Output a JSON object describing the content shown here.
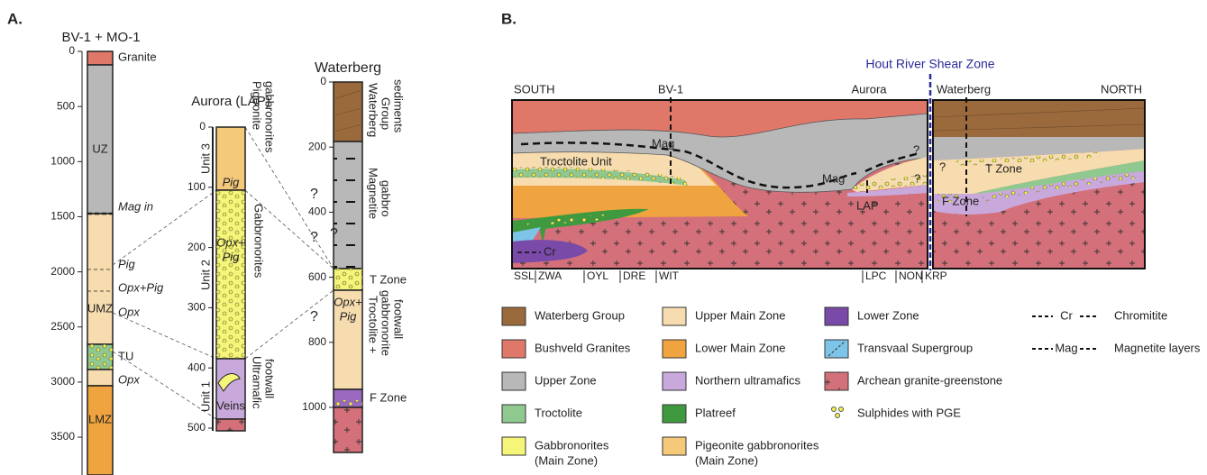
{
  "panel_a": {
    "label": "A.",
    "bv1": {
      "title": "BV-1 + MO-1",
      "ticks": [
        0,
        500,
        1000,
        1500,
        2000,
        2500,
        3000,
        3500
      ],
      "labels": [
        "Granite",
        "UZ",
        "Mag in",
        "Pig",
        "Opx+Pig",
        "UMZ",
        "Opx",
        "TU",
        "Opx",
        "LMZ"
      ]
    },
    "aurora": {
      "title": "Aurora (LAP)",
      "ticks": [
        0,
        100,
        200,
        300,
        400,
        500
      ],
      "units": [
        "Unit 3",
        "Unit 2",
        "Unit 1"
      ],
      "inner_labels": [
        "Pig",
        "Opx+",
        "Pig",
        "Veins"
      ],
      "side_labels": [
        [
          "Pigeonite",
          "gabbronorites"
        ],
        [
          "Gabbronorites"
        ],
        [
          "Ultramafic",
          "footwall"
        ]
      ]
    },
    "waterberg": {
      "title": "Waterberg",
      "ticks": [
        0,
        200,
        400,
        600,
        800,
        1000
      ],
      "inner_labels": [
        "Opx+",
        "Pig"
      ],
      "side_labels": [
        [
          "Waterberg",
          "Group",
          "sediments"
        ],
        [
          "Magnetite",
          "gabbro"
        ],
        [
          "T Zone"
        ],
        [
          "Troctolite +",
          "gabbronorite",
          "footwall"
        ],
        [
          "F Zone"
        ]
      ]
    },
    "question_marks": [
      "?",
      "?",
      "?",
      "?"
    ]
  },
  "panel_b": {
    "label": "B.",
    "shear_zone": "Hout River Shear Zone",
    "top_labels": [
      "SOUTH",
      "BV-1",
      "Aurora",
      "Waterberg",
      "NORTH"
    ],
    "section_labels": [
      "Mag",
      "Mag",
      "Troctolite Unit",
      "T Zone",
      "F Zone",
      "LAP",
      "Cr"
    ],
    "question_marks": [
      "?",
      "?",
      "?"
    ],
    "bottom_labels": [
      "SSL",
      "ZWA",
      "OYL",
      "DRE",
      "WIT",
      "LPC",
      "NON",
      "KRP"
    ],
    "legend": [
      [
        "Waterberg Group"
      ],
      [
        "Bushveld Granites"
      ],
      [
        "Upper Zone"
      ],
      [
        "Troctolite"
      ],
      [
        "Gabbronorites",
        "(Main Zone)"
      ],
      [
        "Upper Main Zone"
      ],
      [
        "Lower Main Zone"
      ],
      [
        "Northern ultramafics"
      ],
      [
        "Platreef"
      ],
      [
        "Pigeonite gabbronorites",
        "(Main Zone)"
      ],
      [
        "Lower Zone"
      ],
      [
        "Transvaal Supergroup"
      ],
      [
        "Archean granite-greenstone"
      ],
      [
        "Sulphides with PGE"
      ],
      [
        "Cr"
      ],
      [
        "Chromitite"
      ],
      [
        "Mag"
      ],
      [
        "Magnetite layers"
      ]
    ]
  }
}
